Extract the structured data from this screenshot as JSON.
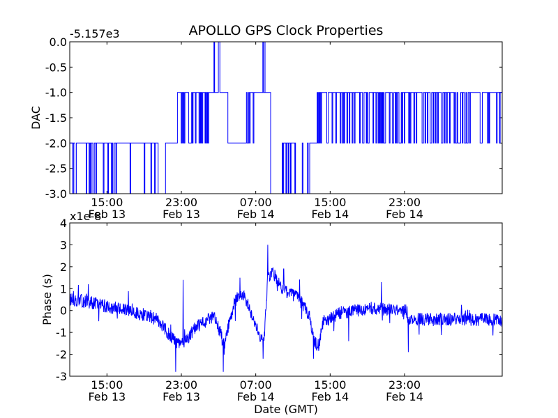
{
  "chart_data": [
    {
      "type": "line",
      "title": "APOLLO GPS Clock Properties",
      "xlabel": "",
      "ylabel": "DAC",
      "offset_text": "-5.157e3",
      "xlim": [
        11,
        57.5
      ],
      "ylim": [
        -3.0,
        0.0
      ],
      "x_ticks": [
        {
          "x": 15,
          "time": "15:00",
          "date": "Feb 13"
        },
        {
          "x": 23,
          "time": "23:00",
          "date": "Feb 13"
        },
        {
          "x": 31,
          "time": "07:00",
          "date": "Feb 14"
        },
        {
          "x": 39,
          "time": "15:00",
          "date": "Feb 14"
        },
        {
          "x": 47,
          "time": "23:00",
          "date": "Feb 14"
        }
      ],
      "y_ticks": [
        {
          "value": 0.0,
          "label": "0.0"
        },
        {
          "value": -0.5,
          "label": "-0.5"
        },
        {
          "value": -1.0,
          "label": "-1.0"
        },
        {
          "value": -1.5,
          "label": "-1.5"
        },
        {
          "value": -2.0,
          "label": "-2.0"
        },
        {
          "value": -2.5,
          "label": "-2.5"
        },
        {
          "value": -3.0,
          "label": "-3.0"
        }
      ],
      "series": [
        {
          "name": "DAC",
          "color": "#0000ff",
          "segments": [
            {
              "x0": 11.0,
              "x1": 20.5,
              "base": -2,
              "alt": -3,
              "switch_rate": 0.2
            },
            {
              "x0": 20.5,
              "x1": 21.3,
              "base": -3,
              "alt": -2,
              "switch_rate": 0.0
            },
            {
              "x0": 21.3,
              "x1": 22.5,
              "base": -2,
              "alt": -1,
              "switch_rate": 0.0
            },
            {
              "x0": 22.5,
              "x1": 26.5,
              "base": -1,
              "alt": -2,
              "switch_rate": 0.25
            },
            {
              "x0": 26.5,
              "x1": 27.2,
              "base": -1,
              "alt": 0,
              "switch_rate": 0.35
            },
            {
              "x0": 27.2,
              "x1": 28.0,
              "base": -1,
              "alt": -2,
              "switch_rate": 0.0
            },
            {
              "x0": 28.0,
              "x1": 30.0,
              "base": -2,
              "alt": -1,
              "switch_rate": 0.0
            },
            {
              "x0": 30.0,
              "x1": 30.8,
              "base": -1,
              "alt": -2,
              "switch_rate": 0.35
            },
            {
              "x0": 30.8,
              "x1": 31.6,
              "base": -1,
              "alt": -1,
              "switch_rate": 0.0
            },
            {
              "x0": 31.6,
              "x1": 32.0,
              "base": 0,
              "alt": -1,
              "switch_rate": 0.5
            },
            {
              "x0": 32.0,
              "x1": 32.6,
              "base": -1,
              "alt": -1,
              "switch_rate": 0.0
            },
            {
              "x0": 32.6,
              "x1": 33.6,
              "base": -3,
              "alt": -2,
              "switch_rate": 0.0
            },
            {
              "x0": 33.6,
              "x1": 35.2,
              "base": -2,
              "alt": -3,
              "switch_rate": 0.35
            },
            {
              "x0": 35.2,
              "x1": 36.8,
              "base": -3,
              "alt": -2,
              "switch_rate": 0.1
            },
            {
              "x0": 36.8,
              "x1": 37.6,
              "base": -2,
              "alt": -2,
              "switch_rate": 0.0
            },
            {
              "x0": 37.6,
              "x1": 57.5,
              "base": -1,
              "alt": -2,
              "switch_rate": 0.3
            }
          ]
        }
      ]
    },
    {
      "type": "line",
      "title": "",
      "xlabel": "Date (GMT)",
      "ylabel": "Phase (s)",
      "offset_text": "x1e-8",
      "xlim": [
        11,
        57.5
      ],
      "ylim": [
        -3,
        4
      ],
      "x_ticks": [
        {
          "x": 15,
          "time": "15:00",
          "date": "Feb 13"
        },
        {
          "x": 23,
          "time": "23:00",
          "date": "Feb 13"
        },
        {
          "x": 31,
          "time": "07:00",
          "date": "Feb 14"
        },
        {
          "x": 39,
          "time": "15:00",
          "date": "Feb 14"
        },
        {
          "x": 47,
          "time": "23:00",
          "date": "Feb 14"
        }
      ],
      "y_ticks": [
        {
          "value": 4,
          "label": "4"
        },
        {
          "value": 3,
          "label": "3"
        },
        {
          "value": 2,
          "label": "2"
        },
        {
          "value": 1,
          "label": "1"
        },
        {
          "value": 0,
          "label": "0"
        },
        {
          "value": -1,
          "label": "-1"
        },
        {
          "value": -2,
          "label": "-2"
        },
        {
          "value": -3,
          "label": "-3"
        }
      ],
      "series": [
        {
          "name": "Phase",
          "color": "#0000ff",
          "noise": 0.3,
          "trend": [
            [
              11.0,
              0.5
            ],
            [
              13.0,
              0.4
            ],
            [
              15.0,
              0.2
            ],
            [
              17.0,
              0.0
            ],
            [
              19.0,
              -0.2
            ],
            [
              20.5,
              -0.4
            ],
            [
              21.5,
              -1.0
            ],
            [
              22.5,
              -1.5
            ],
            [
              23.3,
              -1.5
            ],
            [
              24.5,
              -0.8
            ],
            [
              25.5,
              -0.5
            ],
            [
              26.5,
              -0.3
            ],
            [
              27.2,
              -1.0
            ],
            [
              27.6,
              -1.7
            ],
            [
              28.0,
              -0.8
            ],
            [
              28.8,
              0.5
            ],
            [
              29.6,
              0.7
            ],
            [
              30.2,
              0.3
            ],
            [
              30.8,
              -0.4
            ],
            [
              31.5,
              -1.2
            ],
            [
              31.9,
              -1.3
            ],
            [
              32.3,
              1.5
            ],
            [
              32.8,
              1.8
            ],
            [
              33.5,
              1.2
            ],
            [
              34.5,
              0.8
            ],
            [
              35.5,
              0.6
            ],
            [
              36.2,
              0.2
            ],
            [
              36.8,
              -0.3
            ],
            [
              37.3,
              -1.5
            ],
            [
              37.8,
              -1.6
            ],
            [
              38.3,
              -0.4
            ],
            [
              39.0,
              -0.4
            ],
            [
              40.0,
              -0.1
            ],
            [
              42.0,
              0.0
            ],
            [
              44.0,
              0.1
            ],
            [
              46.0,
              0.0
            ],
            [
              47.0,
              0.0
            ],
            [
              47.5,
              -0.4
            ]
          ],
          "spikes": [
            [
              22.4,
              -2.8
            ],
            [
              23.2,
              1.4
            ],
            [
              27.5,
              -2.8
            ],
            [
              32.3,
              3.0
            ],
            [
              31.8,
              -2.2
            ],
            [
              29.3,
              1.5
            ],
            [
              37.2,
              -2.2
            ],
            [
              34.0,
              1.9
            ],
            [
              13.0,
              1.2
            ],
            [
              47.4,
              -1.9
            ],
            [
              44.5,
              1.3
            ],
            [
              41.0,
              -1.4
            ]
          ]
        }
      ]
    }
  ]
}
